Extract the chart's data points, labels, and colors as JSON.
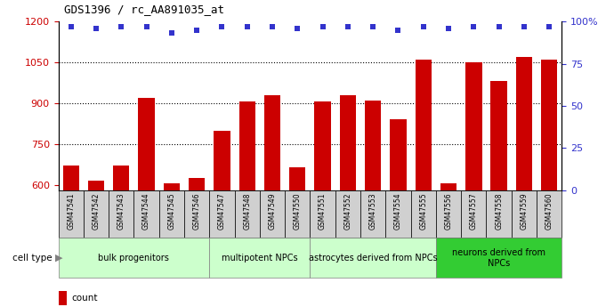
{
  "title": "GDS1396 / rc_AA891035_at",
  "categories": [
    "GSM47541",
    "GSM47542",
    "GSM47543",
    "GSM47544",
    "GSM47545",
    "GSM47546",
    "GSM47547",
    "GSM47548",
    "GSM47549",
    "GSM47550",
    "GSM47551",
    "GSM47552",
    "GSM47553",
    "GSM47554",
    "GSM47555",
    "GSM47556",
    "GSM47557",
    "GSM47558",
    "GSM47559",
    "GSM47560"
  ],
  "counts": [
    670,
    615,
    670,
    920,
    607,
    625,
    800,
    905,
    930,
    665,
    905,
    930,
    910,
    840,
    1060,
    605,
    1050,
    980,
    1070,
    1060
  ],
  "percentile_ranks": [
    97,
    96,
    97,
    97,
    93,
    95,
    97,
    97,
    97,
    96,
    97,
    97,
    97,
    95,
    97,
    96,
    97,
    97,
    97,
    97
  ],
  "bar_color": "#CC0000",
  "dot_color": "#3333CC",
  "ylim_left": [
    580,
    1200
  ],
  "ylim_right": [
    0,
    100
  ],
  "yticks_left": [
    600,
    750,
    900,
    1050,
    1200
  ],
  "yticks_right": [
    0,
    25,
    50,
    75,
    100
  ],
  "ytick_right_labels": [
    "0",
    "25",
    "50",
    "75",
    "100%"
  ],
  "grid_values": [
    750,
    900,
    1050
  ],
  "cell_type_groups": [
    {
      "label": "bulk progenitors",
      "start": 0,
      "end": 6,
      "color": "#ccffcc"
    },
    {
      "label": "multipotent NPCs",
      "start": 6,
      "end": 10,
      "color": "#ccffcc"
    },
    {
      "label": "astrocytes derived from NPCs",
      "start": 10,
      "end": 15,
      "color": "#ccffcc"
    },
    {
      "label": "neurons derived from\nNPCs",
      "start": 15,
      "end": 20,
      "color": "#33cc33"
    }
  ],
  "legend_count_color": "#CC0000",
  "legend_dot_color": "#3333CC",
  "tick_bg_color": "#d0d0d0"
}
